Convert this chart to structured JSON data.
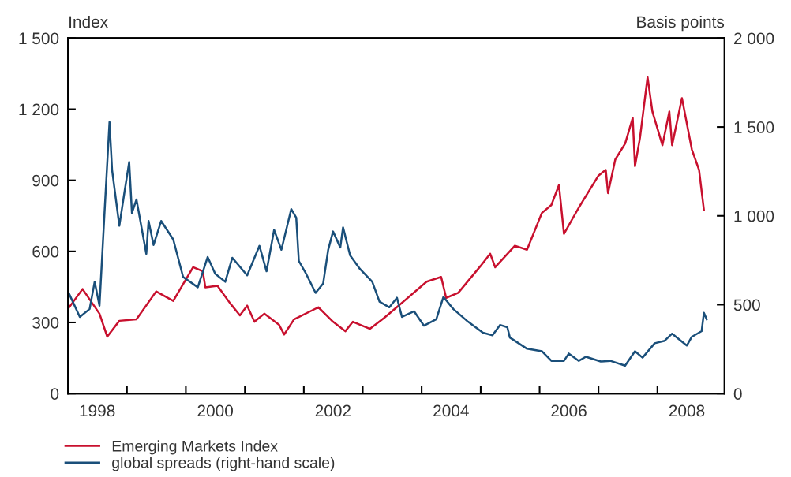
{
  "chart_data": {
    "type": "line",
    "ylabel": "Index",
    "y2label": "Basis points",
    "xlim": [
      "1998-01-01",
      "2009-02-20"
    ],
    "xticks": [
      {
        "value": "1998-07-01",
        "label": "1998"
      },
      {
        "value": "1999-01-01",
        "label": null
      },
      {
        "value": "2000-01-01",
        "label": null
      },
      {
        "value": "2000-07-01",
        "label": "2000"
      },
      {
        "value": "2001-01-01",
        "label": null
      },
      {
        "value": "2002-01-01",
        "label": null
      },
      {
        "value": "2002-07-01",
        "label": "2002"
      },
      {
        "value": "2003-01-01",
        "label": null
      },
      {
        "value": "2004-01-01",
        "label": null
      },
      {
        "value": "2004-07-01",
        "label": "2004"
      },
      {
        "value": "2005-01-01",
        "label": null
      },
      {
        "value": "2006-01-01",
        "label": null
      },
      {
        "value": "2006-07-01",
        "label": "2006"
      },
      {
        "value": "2007-01-01",
        "label": null
      },
      {
        "value": "2008-01-01",
        "label": null
      },
      {
        "value": "2008-07-01",
        "label": "2008"
      }
    ],
    "ylim": [
      0,
      1500
    ],
    "yticks": [
      {
        "value": 0,
        "label": "0"
      },
      {
        "value": 300,
        "label": "300"
      },
      {
        "value": 600,
        "label": "600"
      },
      {
        "value": 900,
        "label": "900"
      },
      {
        "value": 1200,
        "label": "1 200"
      },
      {
        "value": 1500,
        "label": "1 500"
      }
    ],
    "y2lim": [
      0,
      2000
    ],
    "y2ticks": [
      {
        "value": 0,
        "label": "0"
      },
      {
        "value": 500,
        "label": "500"
      },
      {
        "value": 1000,
        "label": "1 000"
      },
      {
        "value": 1500,
        "label": "1 500"
      },
      {
        "value": 2000,
        "label": "2 000"
      }
    ],
    "legend": "bottom left",
    "grid": false,
    "series": [
      {
        "name": "Emerging Markets Index",
        "color": "#c8102e",
        "x": [
          "1998-01-01",
          "1998-04-01",
          "1998-07-15",
          "1998-09-01",
          "1998-11-15",
          "1999-03-01",
          "1999-07-01",
          "1999-10-15",
          "2000-02-15",
          "2000-04-15",
          "2000-05-01",
          "2000-07-15",
          "2000-10-01",
          "2000-12-01",
          "2001-01-15",
          "2001-03-01",
          "2001-05-01",
          "2001-08-01",
          "2001-09-01",
          "2001-11-01",
          "2002-04-01",
          "2002-07-01",
          "2002-09-15",
          "2002-11-01",
          "2003-02-15",
          "2003-05-15",
          "2003-08-01",
          "2004-02-01",
          "2004-05-01",
          "2004-06-01",
          "2004-08-15",
          "2005-01-01",
          "2005-03-01",
          "2005-04-01",
          "2005-08-01",
          "2005-10-15",
          "2006-01-15",
          "2006-03-15",
          "2006-05-01",
          "2006-06-01",
          "2006-09-01",
          "2007-01-01",
          "2007-02-15",
          "2007-03-01",
          "2007-04-15",
          "2007-06-15",
          "2007-08-01",
          "2007-08-15",
          "2007-09-15",
          "2007-11-01",
          "2007-12-01",
          "2008-02-01",
          "2008-03-15",
          "2008-04-01",
          "2008-06-01",
          "2008-08-01",
          "2008-09-15",
          "2008-10-15"
        ],
        "values": [
          357,
          441,
          337,
          240,
          307,
          313,
          431,
          391,
          533,
          516,
          448,
          455,
          381,
          330,
          371,
          303,
          337,
          290,
          249,
          313,
          364,
          303,
          263,
          303,
          273,
          320,
          365,
          472,
          492,
          404,
          425,
          539,
          590,
          533,
          624,
          607,
          762,
          796,
          880,
          674,
          785,
          920,
          944,
          846,
          988,
          1055,
          1163,
          960,
          1079,
          1335,
          1190,
          1048,
          1190,
          1048,
          1247,
          1031,
          944,
          775
        ]
      },
      {
        "name": "global spreads (right-hand scale)",
        "color": "#1a4f7a",
        "axis": "y2",
        "x": [
          "1998-01-01",
          "1998-03-15",
          "1998-05-15",
          "1998-06-15",
          "1998-07-15",
          "1998-08-15",
          "1998-09-15",
          "1998-10-01",
          "1998-11-15",
          "1998-12-15",
          "1999-01-15",
          "1999-02-01",
          "1999-03-01",
          "1999-05-01",
          "1999-05-15",
          "1999-06-15",
          "1999-08-01",
          "1999-10-15",
          "1999-12-15",
          "2000-03-15",
          "2000-05-15",
          "2000-07-01",
          "2000-09-01",
          "2000-10-15",
          "2001-01-15",
          "2001-04-01",
          "2001-05-15",
          "2001-07-01",
          "2001-08-15",
          "2001-10-15",
          "2001-11-15",
          "2001-12-01",
          "2002-01-15",
          "2002-03-15",
          "2002-05-01",
          "2002-06-01",
          "2002-07-01",
          "2002-08-15",
          "2002-09-01",
          "2002-10-15",
          "2002-12-15",
          "2003-03-01",
          "2003-04-15",
          "2003-06-15",
          "2003-08-01",
          "2003-09-01",
          "2003-11-15",
          "2004-01-15",
          "2004-04-01",
          "2004-05-15",
          "2004-07-15",
          "2004-10-15",
          "2005-01-15",
          "2005-03-15",
          "2005-05-01",
          "2005-06-15",
          "2005-07-01",
          "2005-10-15",
          "2006-01-15",
          "2006-03-15",
          "2006-06-01",
          "2006-07-01",
          "2006-09-01",
          "2006-10-15",
          "2007-01-15",
          "2007-03-15",
          "2007-06-15",
          "2007-08-15",
          "2007-10-01",
          "2007-12-15",
          "2008-02-15",
          "2008-04-01",
          "2008-07-01",
          "2008-08-01",
          "2008-10-01",
          "2008-10-15",
          "2008-11-01"
        ],
        "values": [
          575,
          431,
          476,
          629,
          494,
          1016,
          1528,
          1258,
          944,
          1123,
          1303,
          1016,
          1092,
          786,
          971,
          836,
          971,
          867,
          656,
          598,
          768,
          674,
          629,
          764,
          665,
          831,
          688,
          921,
          809,
          1038,
          989,
          746,
          674,
          566,
          620,
          809,
          912,
          822,
          935,
          777,
          701,
          629,
          517,
          485,
          539,
          431,
          463,
          382,
          418,
          544,
          476,
          404,
          342,
          328,
          386,
          373,
          315,
          252,
          238,
          184,
          184,
          225,
          184,
          207,
          180,
          184,
          157,
          238,
          202,
          283,
          297,
          337,
          270,
          319,
          351,
          454,
          418
        ]
      }
    ]
  }
}
